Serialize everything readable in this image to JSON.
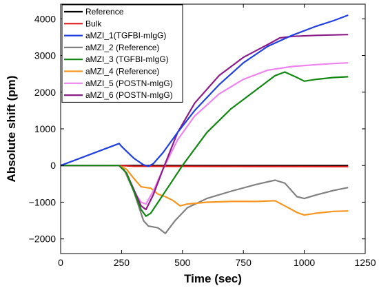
{
  "chart_data": {
    "type": "line",
    "xlabel": "Time (sec)",
    "ylabel": "Absolute shift (pm)",
    "xlim": [
      0,
      1250
    ],
    "ylim": [
      -2400,
      4400
    ],
    "x_ticks": [
      0,
      250,
      500,
      750,
      1000,
      1250
    ],
    "y_ticks": [
      -2000,
      -1000,
      0,
      1000,
      2000,
      3000,
      4000
    ],
    "grid": false,
    "legend_position": "top-left",
    "series": [
      {
        "name": "Reference",
        "color": "#000000",
        "x": [
          0,
          1180
        ],
        "y": [
          0,
          0
        ]
      },
      {
        "name": "Bulk",
        "color": "#e31a1c",
        "x": [
          0,
          240,
          300,
          1180
        ],
        "y": [
          0,
          0,
          -20,
          -30
        ]
      },
      {
        "name": "aMZI_1(TGFBI-mIgG)",
        "color": "#1f3fe0",
        "x": [
          0,
          60,
          120,
          180,
          240,
          250,
          300,
          340,
          360,
          380,
          420,
          480,
          550,
          650,
          750,
          850,
          950,
          1050,
          1120,
          1180
        ],
        "y": [
          0,
          150,
          300,
          450,
          600,
          520,
          200,
          20,
          -20,
          50,
          350,
          900,
          1500,
          2200,
          2800,
          3250,
          3550,
          3800,
          3950,
          4100
        ]
      },
      {
        "name": "aMZI_2 (Reference)",
        "color": "#808080",
        "x": [
          0,
          240,
          260,
          300,
          340,
          360,
          400,
          430,
          470,
          520,
          600,
          700,
          800,
          880,
          920,
          970,
          1000,
          1050,
          1120,
          1180
        ],
        "y": [
          0,
          0,
          -100,
          -700,
          -1500,
          -1650,
          -1700,
          -1850,
          -1500,
          -1150,
          -900,
          -700,
          -520,
          -400,
          -480,
          -850,
          -900,
          -800,
          -680,
          -600
        ]
      },
      {
        "name": "aMZI_3 (TGFBI-mIgG)",
        "color": "#118811",
        "x": [
          0,
          240,
          270,
          300,
          330,
          350,
          370,
          400,
          440,
          500,
          600,
          700,
          800,
          880,
          920,
          970,
          1000,
          1050,
          1120,
          1180
        ],
        "y": [
          0,
          0,
          -200,
          -700,
          -1200,
          -1380,
          -1300,
          -1000,
          -600,
          0,
          900,
          1550,
          2050,
          2450,
          2550,
          2400,
          2300,
          2350,
          2400,
          2420
        ]
      },
      {
        "name": "aMZI_4 (Reference)",
        "color": "#f7941d",
        "x": [
          0,
          240,
          270,
          300,
          330,
          350,
          370,
          400,
          430,
          460,
          490,
          520,
          600,
          700,
          800,
          880,
          920,
          970,
          1000,
          1050,
          1120,
          1180
        ],
        "y": [
          0,
          0,
          -100,
          -350,
          -580,
          -600,
          -620,
          -780,
          -850,
          -950,
          -1100,
          -1050,
          -1000,
          -980,
          -980,
          -960,
          -1100,
          -1280,
          -1350,
          -1300,
          -1250,
          -1240
        ]
      },
      {
        "name": "aMZI_5 (POSTN-mIgG)",
        "color": "#ee82ee",
        "x": [
          0,
          240,
          270,
          300,
          330,
          350,
          380,
          420,
          480,
          550,
          650,
          750,
          850,
          950,
          1050,
          1120,
          1180
        ],
        "y": [
          0,
          0,
          -200,
          -700,
          -1000,
          -1050,
          -700,
          -100,
          700,
          1350,
          1950,
          2350,
          2600,
          2700,
          2750,
          2780,
          2800
        ]
      },
      {
        "name": "aMZI_6 (POSTN-mIgG)",
        "color": "#8b1a89",
        "x": [
          0,
          240,
          270,
          300,
          330,
          350,
          380,
          420,
          480,
          550,
          650,
          750,
          850,
          900,
          950,
          1050,
          1120,
          1180
        ],
        "y": [
          0,
          0,
          -200,
          -650,
          -1100,
          -1200,
          -800,
          -100,
          900,
          1700,
          2450,
          2950,
          3300,
          3480,
          3520,
          3550,
          3560,
          3570
        ]
      }
    ]
  }
}
